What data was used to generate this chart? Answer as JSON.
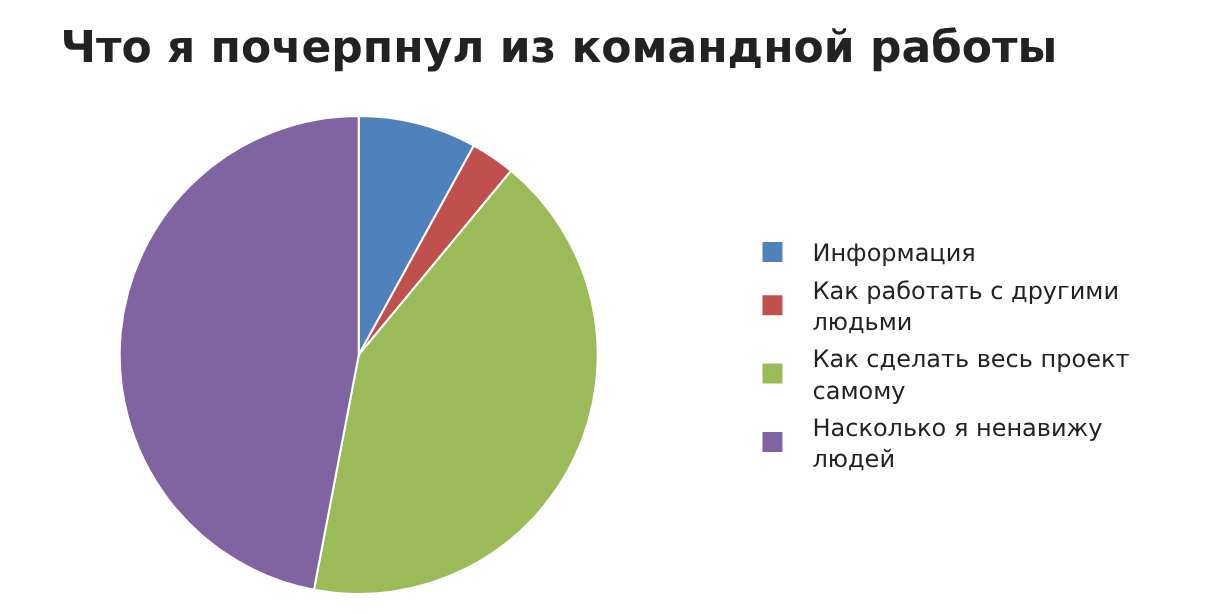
{
  "chart_data": {
    "type": "pie",
    "title": "Что я почерпнул из командной работы",
    "categories": [
      "Информация",
      "Как работать с другими людьми",
      "Как сделать весь проект самому",
      "Насколько я ненавижу людей"
    ],
    "values": [
      8,
      3,
      42,
      47
    ],
    "colors": [
      "#4f81bd",
      "#c0504d",
      "#9bbb59",
      "#8064a2"
    ],
    "legend": "right"
  }
}
